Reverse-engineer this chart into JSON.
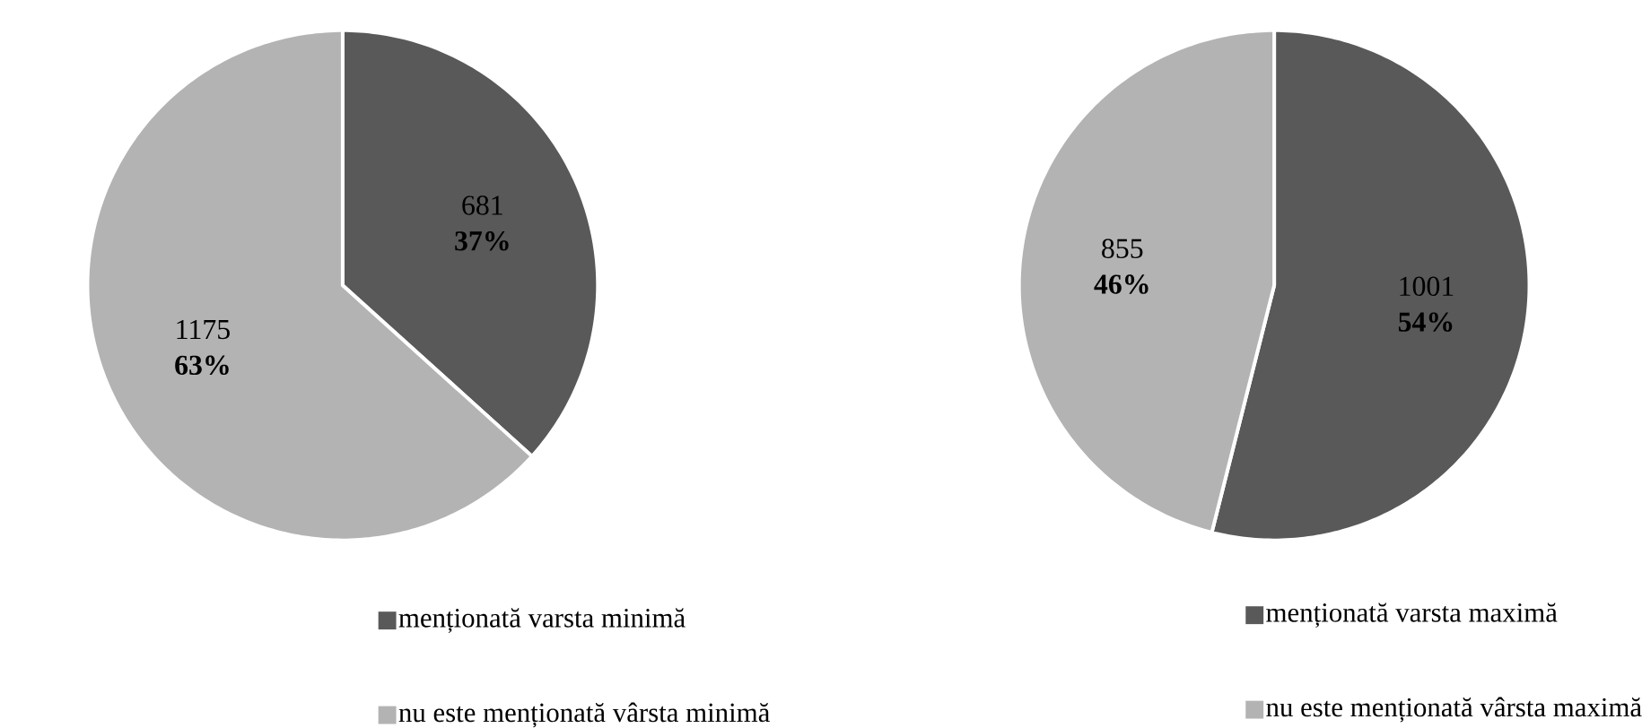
{
  "chart_data": [
    {
      "type": "pie",
      "categories": [
        "menționată varsta minimă",
        "nu este menționată vârsta minimă"
      ],
      "values": [
        681,
        1175
      ],
      "colors": [
        "#595959",
        "#b3b3b3"
      ],
      "value_labels": [
        "681 **37%**",
        "1175 **63%**"
      ],
      "legend": "bottom"
    },
    {
      "type": "pie",
      "categories": [
        "menționată varsta maximă",
        "nu este menționată vârsta maximă"
      ],
      "values": [
        1001,
        855
      ],
      "colors": [
        "#595959",
        "#b3b3b3"
      ],
      "value_labels": [
        "1001 **54%**",
        "855 **46%**"
      ],
      "legend": "bottom"
    }
  ]
}
